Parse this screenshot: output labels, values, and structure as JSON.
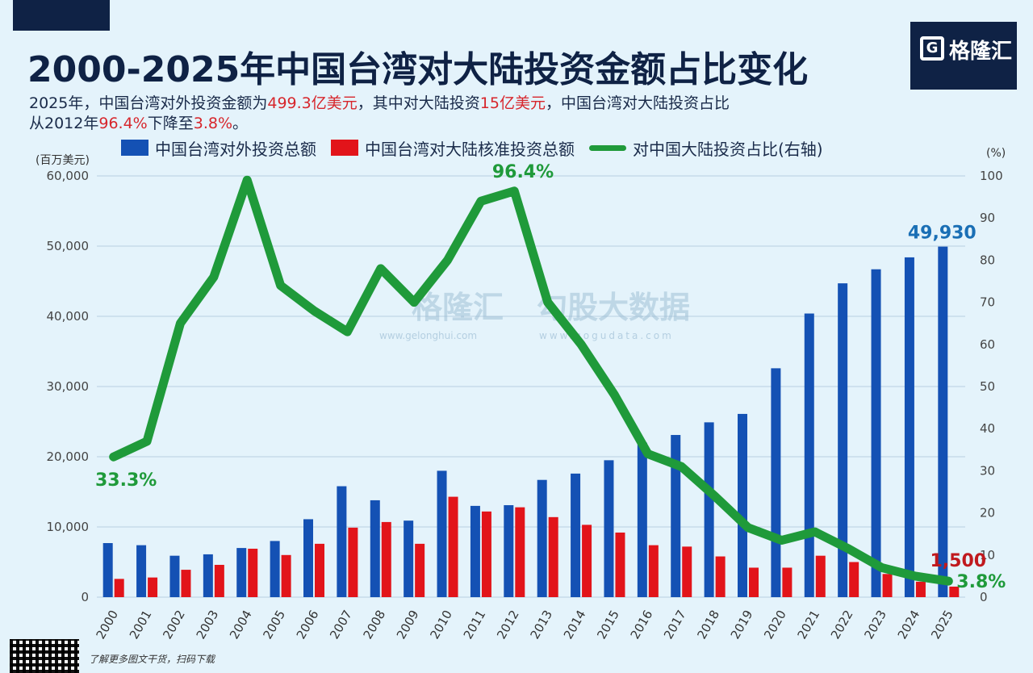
{
  "title": "2000-2025年中国台湾对大陆投资金额占比变化",
  "subtitle": {
    "p1": "2025年，中国台湾对外投资金额为",
    "h1": "499.3亿美元",
    "p2": "，其中对大陆投资",
    "h2": "15亿美元",
    "p3": "，中国台湾对大陆投资占比",
    "p4": "从2012年",
    "h3": "96.4%",
    "p5": "下降至",
    "h4": "3.8%",
    "p6": "。"
  },
  "logo": {
    "mark": "G",
    "name": "格隆汇"
  },
  "footer": "了解更多图文干货，扫码下载",
  "colors": {
    "blue": "#1451b4",
    "red": "#e2141a",
    "green": "#1f9a3a"
  },
  "chart_data": {
    "type": "bar",
    "categories": [
      "2000",
      "2001",
      "2002",
      "2003",
      "2004",
      "2005",
      "2006",
      "2007",
      "2008",
      "2009",
      "2010",
      "2011",
      "2012",
      "2013",
      "2014",
      "2015",
      "2016",
      "2017",
      "2018",
      "2019",
      "2020",
      "2021",
      "2022",
      "2023",
      "2024",
      "2025"
    ],
    "y_left_unit": "(百万美元)",
    "y_right_unit": "(%)",
    "y_left_ticks": [
      "0",
      "10,000",
      "20,000",
      "30,000",
      "40,000",
      "50,000",
      "60,000"
    ],
    "y_right_ticks": [
      "0",
      "10",
      "20",
      "30",
      "40",
      "50",
      "60",
      "70",
      "80",
      "90",
      "100"
    ],
    "ylim_left": [
      0,
      60000
    ],
    "ylim_right": [
      0,
      100
    ],
    "series": [
      {
        "name": "中国台湾对外投资总额",
        "type": "bar",
        "axis": "left",
        "values": [
          7700,
          7400,
          5900,
          6100,
          7000,
          8000,
          11100,
          15800,
          13800,
          10900,
          18000,
          13000,
          13100,
          16700,
          17600,
          19500,
          22000,
          23100,
          24900,
          26100,
          32600,
          40400,
          44700,
          46700,
          48400,
          49930
        ]
      },
      {
        "name": "中国台湾对大陆核准投资总额",
        "type": "bar",
        "axis": "left",
        "values": [
          2600,
          2800,
          3900,
          4600,
          6900,
          6000,
          7600,
          9900,
          10700,
          7600,
          14300,
          12200,
          12800,
          11400,
          10300,
          9200,
          7400,
          7200,
          5800,
          4200,
          4200,
          5900,
          5000,
          3300,
          2200,
          1500
        ]
      },
      {
        "name": "对中国大陆投资占比(右轴)",
        "type": "line",
        "axis": "right",
        "values": [
          33.3,
          37,
          65,
          76,
          99,
          74,
          68,
          63,
          78,
          70,
          80,
          94,
          96.4,
          70,
          60,
          48,
          34,
          31,
          24,
          16.5,
          13.5,
          15.5,
          11.5,
          7,
          5,
          3.8
        ]
      }
    ],
    "annotations": [
      {
        "text": "33.3%",
        "target": "2000"
      },
      {
        "text": "96.4%",
        "target": "2012"
      },
      {
        "text": "49,930",
        "target": "2025"
      },
      {
        "text": "1,500",
        "target": "2025"
      },
      {
        "text": "3.8%",
        "target": "2025"
      }
    ],
    "legend": "top",
    "grid": true
  },
  "watermark": {
    "brand": "格隆汇",
    "brand_url": "www.gelonghui.com",
    "brand2": "勾股大数据",
    "brand2_url": "www.gogudata.com"
  }
}
